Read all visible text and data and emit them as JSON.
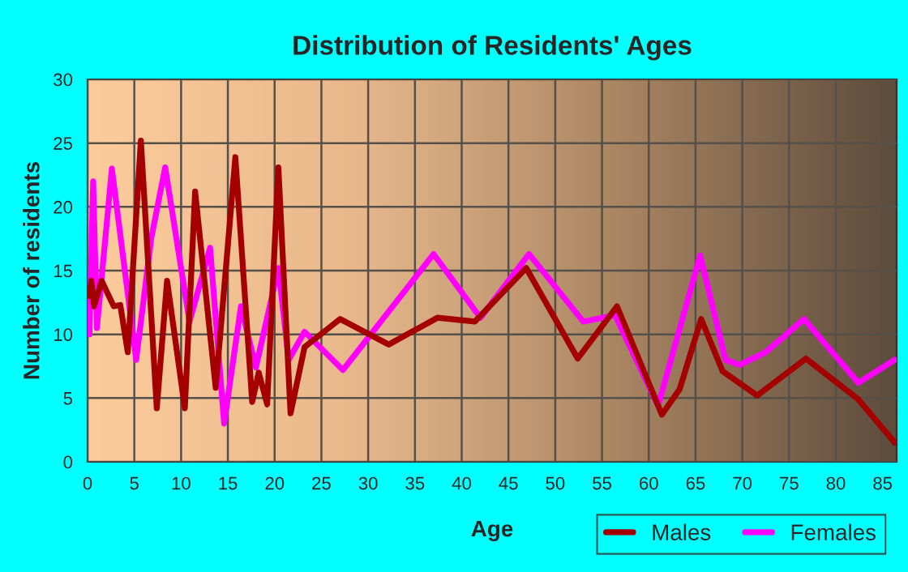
{
  "chart_data": {
    "type": "line",
    "title": "Distribution of Residents' Ages",
    "xlabel": "Age",
    "ylabel": "Number of residents",
    "xlim": [
      0,
      86.5
    ],
    "xticks": [
      0,
      5,
      10,
      15,
      20,
      25,
      30,
      35,
      40,
      45,
      50,
      55,
      60,
      65,
      70,
      75,
      80,
      85
    ],
    "ylim": [
      0,
      30
    ],
    "yticks": [
      0,
      5,
      10,
      15,
      20,
      25,
      30
    ],
    "grid": true,
    "legend": "bottom right",
    "line_style": "solid",
    "series": [
      {
        "name": "Males",
        "color": "#a50000",
        "x": [
          0.2,
          0.4,
          0.7,
          1.5,
          2.8,
          3.5,
          4.3,
          5.7,
          7.4,
          8.5,
          10.4,
          11.5,
          13.7,
          15.8,
          17.6,
          18.3,
          19.2,
          20.4,
          21.7,
          23.2,
          27,
          32.2,
          37.4,
          41.4,
          46.9,
          52.4,
          56.6,
          61.4,
          63.3,
          65.6,
          67.9,
          71.6,
          76.8,
          82.4,
          86.3
        ],
        "values": [
          13,
          14.2,
          12.2,
          14.2,
          12.2,
          12.3,
          8.6,
          25.2,
          4.2,
          14.2,
          4.2,
          21.2,
          5.8,
          23.9,
          4.7,
          7,
          4.5,
          23.1,
          3.8,
          9,
          11.2,
          9.2,
          11.3,
          11,
          15.2,
          8.1,
          12.2,
          3.7,
          5.7,
          11.2,
          7.1,
          5.2,
          8.1,
          4.9,
          1.5
        ]
      },
      {
        "name": "Females",
        "color": "#ff00ff",
        "x": [
          0.2,
          0.6,
          1,
          2.6,
          5.2,
          6.8,
          8.3,
          10.9,
          13.1,
          14.6,
          16.4,
          18,
          20.4,
          21.5,
          23.2,
          27.3,
          37,
          42,
          47.2,
          53,
          56.4,
          61,
          65.5,
          68.2,
          69.7,
          72.5,
          76.6,
          82.4,
          86.3
        ],
        "values": [
          10,
          22,
          10.5,
          23,
          8,
          17.5,
          23.1,
          11,
          16.8,
          3,
          12.2,
          7.4,
          15.2,
          8,
          10.2,
          7.2,
          16.3,
          11.3,
          16.3,
          11,
          11.5,
          4.4,
          16.2,
          8,
          7.6,
          8.6,
          11.2,
          6.2,
          8
        ]
      }
    ]
  }
}
